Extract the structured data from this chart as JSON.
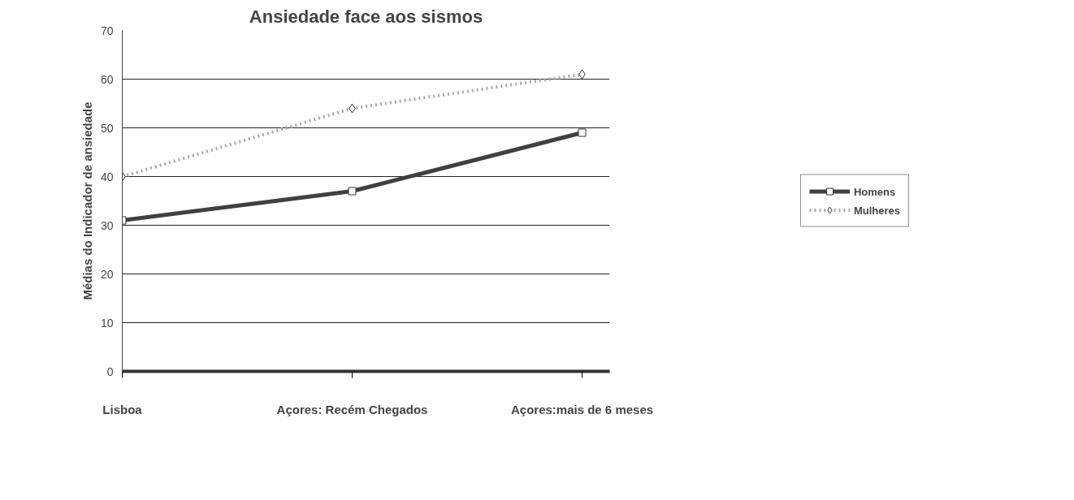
{
  "chart_data": {
    "type": "line",
    "title": "Ansiedade face aos sismos",
    "ylabel": "Médias do Indicador de ansiedade",
    "categories": [
      "Lisboa",
      "Açores: Recém Chegados",
      "Açores:mais de 6 meses"
    ],
    "series": [
      {
        "name": "Homens",
        "color": "#404040",
        "values": [
          31,
          37,
          49
        ],
        "marker": "square",
        "line_style": "solid"
      },
      {
        "name": "Mulheres",
        "color": "#a8a8a8",
        "values": [
          40,
          54,
          61
        ],
        "marker": "diamond",
        "line_style": "dotted"
      }
    ],
    "ylim": [
      0,
      70
    ],
    "yticks": [
      0,
      10,
      20,
      30,
      40,
      50,
      60,
      70
    ],
    "grid": "y",
    "legend": "right"
  }
}
